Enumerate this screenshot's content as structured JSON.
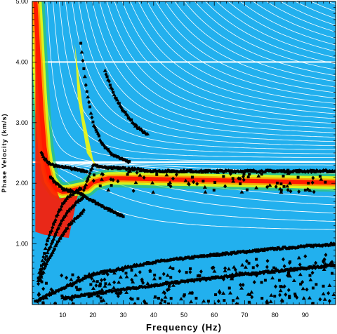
{
  "chart_data": {
    "type": "heatmap",
    "title": "",
    "xlabel": "Frequency (Hz)",
    "ylabel": "Phase Velocity (km/s)",
    "xlim": [
      0,
      100
    ],
    "ylim": [
      0,
      5
    ],
    "x_ticks": [
      10,
      20,
      30,
      40,
      50,
      60,
      70,
      80,
      90
    ],
    "x_tick_labels": [
      "10",
      "20",
      "30",
      "40",
      "50",
      "60",
      "70",
      "80",
      "90"
    ],
    "y_ticks": [
      1,
      2,
      3,
      4,
      5
    ],
    "y_tick_labels": [
      "1.00",
      "2.00",
      "3.00",
      "4.00",
      "5.00"
    ],
    "grid": false,
    "colors": {
      "background": "#22b0ee",
      "ridge_core": "#ff1a00",
      "ridge_orange": "#ff9900",
      "ridge_yellow": "#ffff00",
      "ridge_green": "#33cc55",
      "theoretical_curves": "#ffffff",
      "picks": "#000000"
    },
    "energy_ridge": {
      "x": [
        1,
        2,
        3,
        4,
        5,
        6,
        8,
        10,
        12,
        15,
        18,
        20,
        25,
        30,
        40,
        50,
        60,
        70,
        80,
        90,
        100
      ],
      "y": [
        5.0,
        4.1,
        3.2,
        2.6,
        2.25,
        2.05,
        1.9,
        1.86,
        1.87,
        1.9,
        1.93,
        2.02,
        2.08,
        2.08,
        2.07,
        2.06,
        2.05,
        2.04,
        2.03,
        2.02,
        2.01
      ]
    },
    "picked_branches": [
      {
        "x": [
          2,
          5,
          8,
          10,
          12,
          15,
          16
        ],
        "y": [
          0.45,
          1.05,
          1.45,
          1.65,
          1.78,
          1.88,
          1.92
        ]
      },
      {
        "x": [
          2,
          5,
          8,
          10,
          12,
          15,
          17
        ],
        "y": [
          0.4,
          0.85,
          1.2,
          1.4,
          1.55,
          1.7,
          1.78
        ]
      },
      {
        "x": [
          2,
          5,
          8,
          10,
          12,
          15,
          17
        ],
        "y": [
          0.35,
          0.7,
          1.0,
          1.15,
          1.3,
          1.45,
          1.55
        ]
      },
      {
        "x": [
          1,
          20,
          40,
          60,
          80,
          100
        ],
        "y": [
          0.05,
          0.5,
          0.7,
          0.82,
          0.92,
          1.0
        ]
      },
      {
        "x": [
          10,
          30,
          50,
          70,
          90,
          100
        ],
        "y": [
          0.1,
          0.25,
          0.38,
          0.5,
          0.6,
          0.65
        ]
      },
      {
        "x": [
          17,
          20,
          25,
          30,
          40,
          60,
          80,
          100
        ],
        "y": [
          1.9,
          2.3,
          2.25,
          2.25,
          2.2,
          2.2,
          2.2,
          2.2
        ]
      },
      {
        "x": [
          16,
          18,
          20,
          23,
          27,
          32
        ],
        "y": [
          4.3,
          3.5,
          3.0,
          2.65,
          2.45,
          2.35
        ]
      },
      {
        "x": [
          24,
          27,
          30,
          34,
          38
        ],
        "y": [
          3.85,
          3.45,
          3.2,
          2.95,
          2.8
        ]
      },
      {
        "x": [
          3,
          4,
          6,
          8,
          12,
          18
        ],
        "y": [
          2.5,
          2.4,
          2.32,
          2.28,
          2.25,
          2.2
        ]
      },
      {
        "x": [
          6,
          10,
          15,
          22,
          30
        ],
        "y": [
          2.1,
          1.9,
          1.85,
          1.65,
          1.45
        ]
      }
    ]
  }
}
